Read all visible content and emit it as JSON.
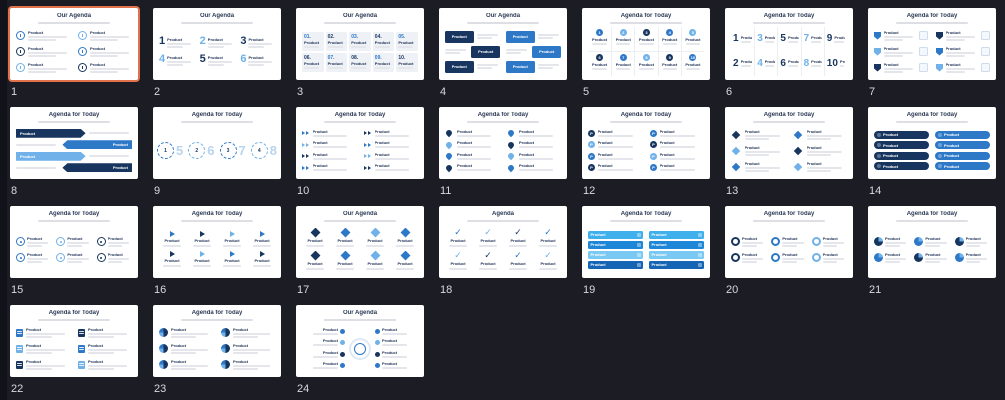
{
  "view": {
    "name": "slide-sorter",
    "columns": 7
  },
  "colors": {
    "background": "#1c1c24",
    "slide": "#ffffff",
    "selection": "#e0714a",
    "navy": "#17355e",
    "blue": "#2e78c8",
    "lightBlue": "#6fb1e8",
    "paleNumber": "#b9d4ee",
    "cyan1": "#3fb0ec",
    "cyan2": "#1e86d6",
    "cyan3": "#7ac9f2",
    "cyan4": "#1565b4",
    "boxGray": "#eef1f5",
    "titleText": "#2b3a55",
    "numberText": "#d8d9df"
  },
  "slides": [
    {
      "number": "1",
      "title": "Our Agenda",
      "layout": "icons2col",
      "selected": true,
      "item_label": "Product",
      "count": 6
    },
    {
      "number": "2",
      "title": "Our Agenda",
      "layout": "bignum3col",
      "item_label": "Product",
      "values": [
        "1",
        "2",
        "3",
        "4",
        "5",
        "6"
      ]
    },
    {
      "number": "3",
      "title": "Our Agenda",
      "layout": "numboxes",
      "item_label": "Product",
      "values": [
        "01.",
        "02.",
        "03.",
        "04.",
        "05.",
        "06.",
        "07.",
        "08.",
        "09.",
        "10."
      ]
    },
    {
      "number": "4",
      "title": "Our Agenda",
      "layout": "darkboxes",
      "item_label": "Product",
      "count": 6
    },
    {
      "number": "5",
      "title": "Agenda for Today",
      "layout": "dotgrid",
      "item_label": "Product",
      "values": [
        "1",
        "2",
        "3",
        "4",
        "5",
        "6",
        "7",
        "8",
        "9",
        "10"
      ]
    },
    {
      "number": "6",
      "title": "Agenda for Today",
      "layout": "numcols",
      "item_label": "Product",
      "values": [
        "1",
        "3",
        "5",
        "7",
        "9",
        "2",
        "4",
        "6",
        "8",
        "10"
      ]
    },
    {
      "number": "7",
      "title": "Agenda for Today",
      "layout": "shieldrows",
      "item_label": "Product",
      "count": 6
    },
    {
      "number": "8",
      "title": "Agenda for Today",
      "layout": "arrowbars",
      "item_label": "Product",
      "count": 4
    },
    {
      "number": "9",
      "title": "Agenda for Today",
      "layout": "circlesrow",
      "values": [
        "1",
        "2",
        "3",
        "4",
        "5",
        "6",
        "7",
        "8"
      ]
    },
    {
      "number": "10",
      "title": "Agenda for Today",
      "layout": "chevlist",
      "item_label": "Product",
      "count": 8
    },
    {
      "number": "11",
      "title": "Agenda for Today",
      "layout": "pinlist",
      "item_label": "Product",
      "count": 8
    },
    {
      "number": "12",
      "title": "Agenda for Today",
      "layout": "plist",
      "item_label": "Product",
      "count": 8
    },
    {
      "number": "13",
      "title": "Agenda for Today",
      "layout": "diamondlist",
      "item_label": "Product",
      "count": 6
    },
    {
      "number": "14",
      "title": "Agenda for Today",
      "layout": "pilllist",
      "item_label": "Product",
      "count": 8
    },
    {
      "number": "15",
      "title": "Agenda for Today",
      "layout": "ringgrid",
      "item_label": "Product",
      "count": 6
    },
    {
      "number": "16",
      "title": "Agenda for Today",
      "layout": "arrowgrid",
      "item_label": "Product",
      "count": 8
    },
    {
      "number": "17",
      "title": "Our Agenda",
      "layout": "diamondgrid",
      "item_label": "Product",
      "count": 8
    },
    {
      "number": "18",
      "title": "Agenda",
      "layout": "checkgrid",
      "item_label": "Product",
      "count": 8
    },
    {
      "number": "19",
      "title": "Agenda for Today",
      "layout": "brighttable",
      "item_label": "Product",
      "count": 8
    },
    {
      "number": "20",
      "title": "Agenda for Today",
      "layout": "donutgrid",
      "item_label": "Product",
      "count": 6
    },
    {
      "number": "21",
      "title": "Agenda for Today",
      "layout": "circlegrid",
      "item_label": "Product",
      "count": 6
    },
    {
      "number": "22",
      "title": "Agenda for Today",
      "layout": "docgrid",
      "item_label": "Product",
      "count": 6
    },
    {
      "number": "23",
      "title": "Agenda for Today",
      "layout": "piegrid",
      "item_label": "Product",
      "count": 6
    },
    {
      "number": "24",
      "title": "Our Agenda",
      "layout": "hubspoke",
      "item_label": "Product",
      "count": 8
    }
  ]
}
